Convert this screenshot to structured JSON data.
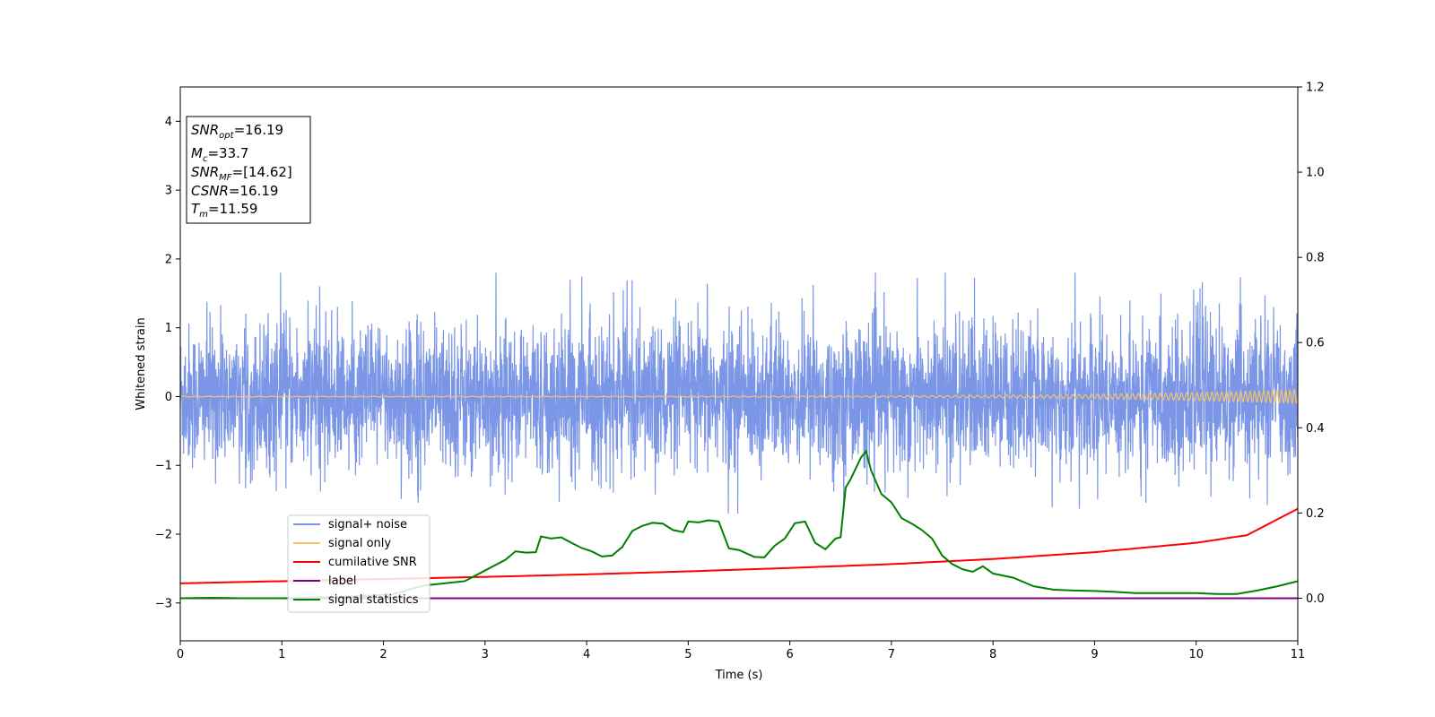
{
  "chart_data": {
    "type": "line",
    "xlabel": "Time (s)",
    "ylabel": "Whitened strain",
    "xlim": [
      0,
      11
    ],
    "ylim": [
      -3.55,
      4.5
    ],
    "y2lim": [
      -0.1,
      1.2
    ],
    "x_ticks": [
      "0",
      "1",
      "2",
      "3",
      "4",
      "5",
      "6",
      "7",
      "8",
      "9",
      "10",
      "11"
    ],
    "y_ticks": [
      "−3",
      "−2",
      "−1",
      "0",
      "1",
      "2",
      "3",
      "4"
    ],
    "y2_ticks": [
      "0.0",
      "0.2",
      "0.4",
      "0.6",
      "0.8",
      "1.0",
      "1.2"
    ],
    "grid": false,
    "legend_position": "lower-left",
    "annotation_box": [
      {
        "sym": "SNR",
        "sub": "opt",
        "val": "=16.19"
      },
      {
        "sym": "M",
        "sub": "c",
        "val": "=33.7"
      },
      {
        "sym": "SNR",
        "sub": "MF",
        "val": "=[14.62]"
      },
      {
        "sym": "CSNR",
        "sub": "",
        "val": "=16.19"
      },
      {
        "sym": "T",
        "sub": "m",
        "val": "=11.59"
      }
    ],
    "series": [
      {
        "name": "signal+ noise",
        "color": "#7b96e6",
        "axis": "left",
        "kind": "noise",
        "amplitude_typical": 0.6,
        "range": [
          -1.7,
          1.8
        ]
      },
      {
        "name": "signal only",
        "color": "#f2c46b",
        "axis": "left",
        "kind": "chirp",
        "amplitude_start": 0.005,
        "amplitude_end": 0.1
      },
      {
        "name": "cumilative SNR",
        "color": "#ff0000",
        "axis": "right",
        "x": [
          0,
          1,
          2,
          3,
          4,
          5,
          6,
          7,
          8,
          9,
          10,
          10.5,
          11
        ],
        "y": [
          0.035,
          0.04,
          0.045,
          0.05,
          0.056,
          0.063,
          0.071,
          0.08,
          0.092,
          0.108,
          0.13,
          0.148,
          0.21
        ]
      },
      {
        "name": "label",
        "color": "#800080",
        "axis": "right",
        "x": [
          0,
          11
        ],
        "y": [
          0.0,
          0.0
        ]
      },
      {
        "name": "signal statistics",
        "color": "#008000",
        "axis": "right",
        "x": [
          0,
          0.3,
          0.6,
          1.0,
          1.4,
          1.8,
          2.1,
          2.4,
          2.6,
          2.8,
          3.0,
          3.2,
          3.3,
          3.4,
          3.5,
          3.55,
          3.65,
          3.75,
          3.85,
          3.95,
          4.05,
          4.15,
          4.25,
          4.35,
          4.45,
          4.55,
          4.65,
          4.75,
          4.85,
          4.95,
          5.0,
          5.1,
          5.2,
          5.3,
          5.4,
          5.5,
          5.65,
          5.75,
          5.85,
          5.95,
          6.05,
          6.15,
          6.25,
          6.35,
          6.45,
          6.5,
          6.55,
          6.6,
          6.7,
          6.75,
          6.8,
          6.9,
          7.0,
          7.1,
          7.2,
          7.3,
          7.4,
          7.5,
          7.6,
          7.7,
          7.8,
          7.9,
          8.0,
          8.2,
          8.4,
          8.6,
          8.8,
          9.0,
          9.2,
          9.4,
          9.6,
          9.8,
          10.0,
          10.2,
          10.4,
          10.6,
          10.8,
          11.0
        ],
        "y": [
          0.0,
          0.001,
          0.0,
          0.0,
          0.002,
          0.005,
          0.01,
          0.03,
          0.035,
          0.04,
          0.065,
          0.09,
          0.11,
          0.107,
          0.108,
          0.145,
          0.14,
          0.143,
          0.13,
          0.118,
          0.11,
          0.098,
          0.1,
          0.12,
          0.158,
          0.17,
          0.177,
          0.175,
          0.16,
          0.155,
          0.18,
          0.178,
          0.183,
          0.18,
          0.117,
          0.113,
          0.097,
          0.096,
          0.123,
          0.14,
          0.176,
          0.18,
          0.13,
          0.115,
          0.14,
          0.143,
          0.26,
          0.28,
          0.33,
          0.345,
          0.3,
          0.245,
          0.225,
          0.188,
          0.175,
          0.16,
          0.14,
          0.1,
          0.08,
          0.068,
          0.062,
          0.075,
          0.058,
          0.048,
          0.028,
          0.02,
          0.018,
          0.017,
          0.015,
          0.012,
          0.012,
          0.012,
          0.012,
          0.01,
          0.01,
          0.018,
          0.028,
          0.04
        ]
      }
    ]
  }
}
